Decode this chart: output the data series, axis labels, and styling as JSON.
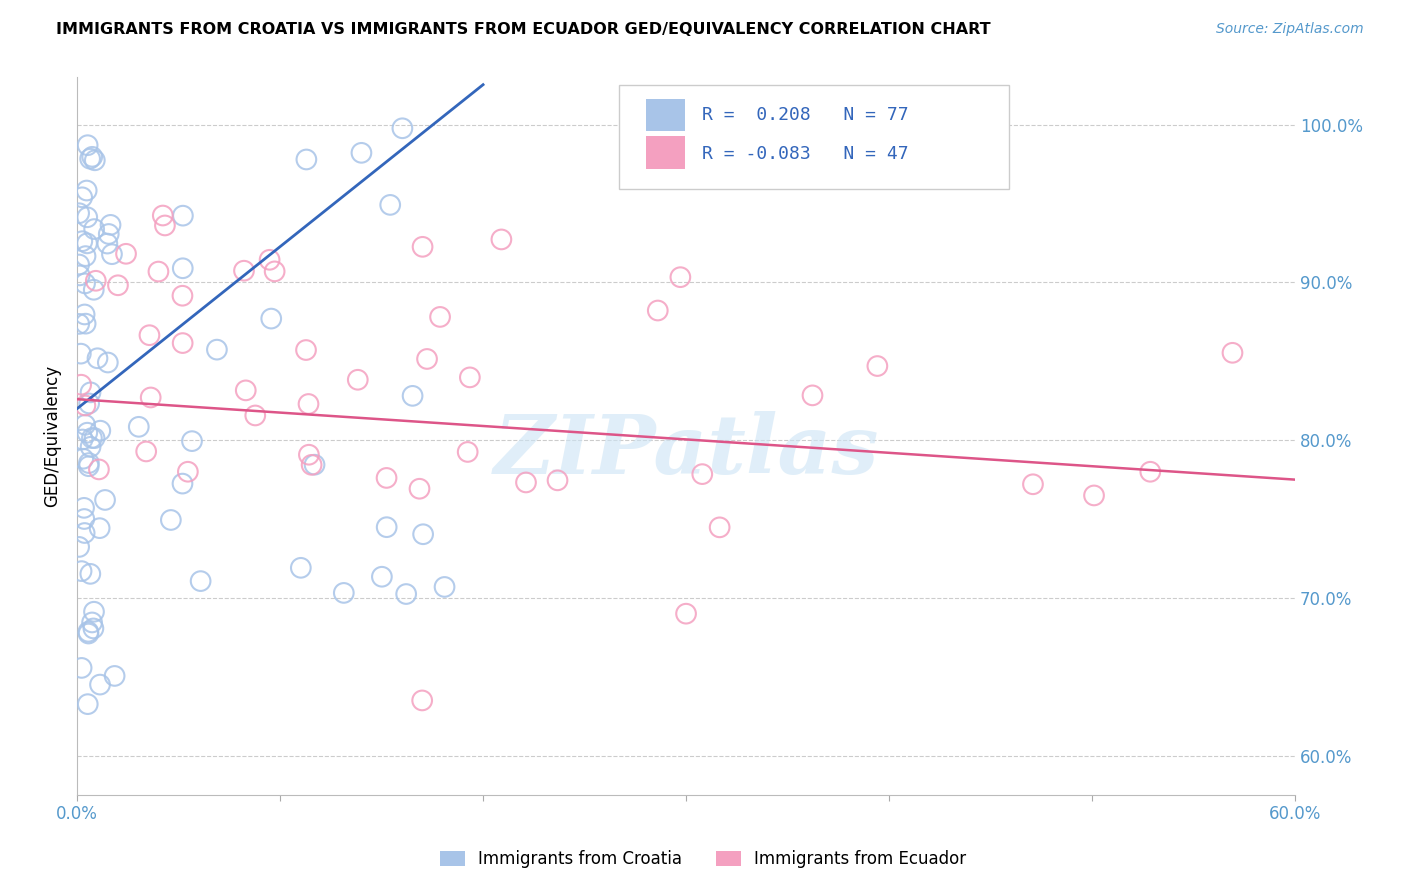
{
  "title": "IMMIGRANTS FROM CROATIA VS IMMIGRANTS FROM ECUADOR GED/EQUIVALENCY CORRELATION CHART",
  "source": "Source: ZipAtlas.com",
  "ylabel": "GED/Equivalency",
  "ytick_labels": [
    "60.0%",
    "70.0%",
    "80.0%",
    "90.0%",
    "100.0%"
  ],
  "ytick_values": [
    0.6,
    0.7,
    0.8,
    0.9,
    1.0
  ],
  "xlim": [
    0.0,
    0.6
  ],
  "ylim": [
    0.575,
    1.03
  ],
  "croatia_R": 0.208,
  "croatia_N": 77,
  "ecuador_R": -0.083,
  "ecuador_N": 47,
  "croatia_color": "#a8c4e8",
  "ecuador_color": "#f4a0c0",
  "croatia_line_color": "#3366bb",
  "ecuador_line_color": "#dd5588",
  "watermark": "ZIPatlas",
  "legend_text_color": "#3366bb",
  "legend_r_color": "#000000",
  "source_color": "#5599cc",
  "axis_label_color": "#5599cc",
  "grid_color": "#cccccc"
}
